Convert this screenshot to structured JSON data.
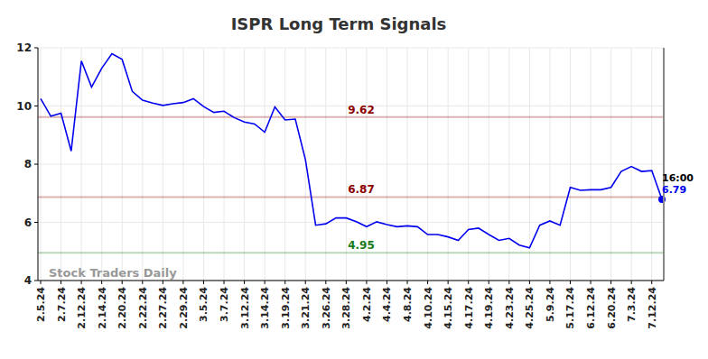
{
  "chart_data": {
    "type": "line",
    "title": "ISPR Long Term Signals",
    "categories": [
      "2.5.24",
      null,
      "2.7.24",
      null,
      "2.12.24",
      null,
      "2.14.24",
      null,
      "2.20.24",
      null,
      "2.22.24",
      null,
      "2.27.24",
      null,
      "2.29.24",
      null,
      "3.5.24",
      null,
      "3.7.24",
      null,
      "3.12.24",
      null,
      "3.14.24",
      null,
      "3.19.24",
      null,
      "3.21.24",
      null,
      "3.26.24",
      null,
      "3.28.24",
      null,
      "4.2.24",
      null,
      "4.4.24",
      null,
      "4.8.24",
      null,
      "4.10.24",
      null,
      "4.15.24",
      null,
      "4.17.24",
      null,
      "4.19.24",
      null,
      "4.23.24",
      null,
      "4.25.24",
      null,
      "5.9.24",
      null,
      "5.17.24",
      null,
      "6.12.24",
      null,
      "6.20.24",
      null,
      "7.3.24",
      null,
      "7.12.24",
      null
    ],
    "values": [
      10.25,
      9.65,
      9.75,
      8.45,
      11.55,
      10.65,
      11.3,
      11.8,
      11.6,
      10.5,
      10.2,
      10.1,
      10.02,
      10.08,
      10.12,
      10.25,
      9.98,
      9.78,
      9.82,
      9.6,
      9.45,
      9.38,
      9.1,
      9.97,
      9.52,
      9.55,
      8.15,
      5.9,
      5.95,
      6.15,
      6.15,
      6.02,
      5.85,
      6.02,
      5.92,
      5.85,
      5.88,
      5.85,
      5.58,
      5.58,
      5.5,
      5.38,
      5.75,
      5.8,
      5.58,
      5.38,
      5.45,
      5.22,
      5.12,
      5.9,
      6.05,
      5.9,
      7.2,
      7.1,
      7.12,
      7.12,
      7.2,
      7.75,
      7.92,
      7.75,
      7.78,
      6.79
    ],
    "color": "#0000ee",
    "ylim": [
      4,
      12
    ],
    "yticks": [
      4,
      6,
      8,
      10,
      12
    ],
    "grid": true,
    "reference_lines": [
      {
        "value": 9.62,
        "color": "#8b0000"
      },
      {
        "value": 6.87,
        "color": "#8b0000"
      },
      {
        "value": 4.95,
        "color": "#1a7a1a"
      }
    ],
    "last_point_label": "16:00",
    "watermark": "Stock Traders Daily"
  }
}
